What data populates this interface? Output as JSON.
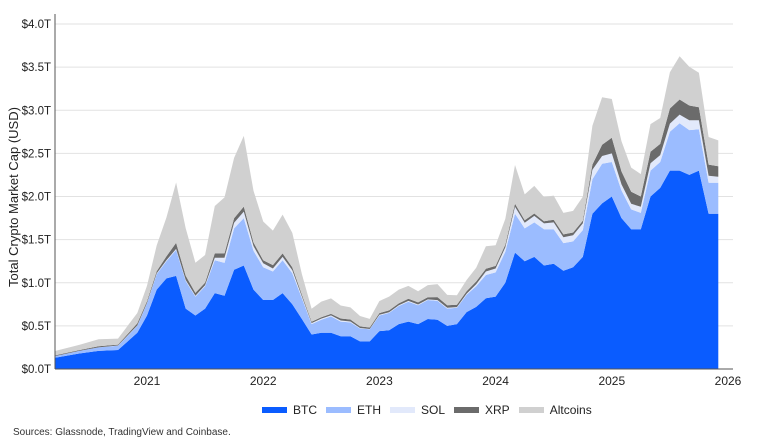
{
  "chart_data": {
    "type": "area",
    "stacked": true,
    "title": "",
    "xlabel": "",
    "ylabel": "Total Crypto Market Cap (USD)",
    "ylim": [
      0,
      4.0
    ],
    "yticks": [
      "$0.0T",
      "$0.5T",
      "$1.0T",
      "$1.5T",
      "$2.0T",
      "$2.5T",
      "$3.0T",
      "$3.5T",
      "$4.0T"
    ],
    "xticks": [
      "2021",
      "2022",
      "2023",
      "2024",
      "2025",
      "2026"
    ],
    "grid": "horizontal",
    "legend_position": "bottom",
    "x": [
      "2020-04",
      "2020-06",
      "2020-08",
      "2020-10",
      "2020-12",
      "2021-01",
      "2021-02",
      "2021-03",
      "2021-04",
      "2021-05",
      "2021-06",
      "2021-07",
      "2021-08",
      "2021-09",
      "2021-10",
      "2021-11",
      "2021-12",
      "2022-01",
      "2022-02",
      "2022-03",
      "2022-04",
      "2022-05",
      "2022-06",
      "2022-07",
      "2022-08",
      "2022-09",
      "2022-10",
      "2022-11",
      "2022-12",
      "2023-01",
      "2023-02",
      "2023-03",
      "2023-04",
      "2023-05",
      "2023-06",
      "2023-07",
      "2023-08",
      "2023-09",
      "2023-10",
      "2023-11",
      "2023-12",
      "2024-01",
      "2024-02",
      "2024-03",
      "2024-04",
      "2024-05",
      "2024-06",
      "2024-07",
      "2024-08",
      "2024-09",
      "2024-10",
      "2024-11",
      "2024-12",
      "2025-01",
      "2025-02",
      "2025-03",
      "2025-04",
      "2025-05",
      "2025-06",
      "2025-07",
      "2025-08",
      "2025-09",
      "2025-10",
      "2025-11",
      "2025-12"
    ],
    "series": [
      {
        "name": "BTC",
        "color": "#0a5cff",
        "values": [
          0.13,
          0.18,
          0.21,
          0.22,
          0.42,
          0.62,
          0.92,
          1.05,
          1.08,
          0.7,
          0.62,
          0.7,
          0.88,
          0.85,
          1.15,
          1.2,
          0.92,
          0.8,
          0.8,
          0.88,
          0.75,
          0.58,
          0.4,
          0.42,
          0.42,
          0.38,
          0.38,
          0.32,
          0.32,
          0.44,
          0.45,
          0.52,
          0.55,
          0.52,
          0.58,
          0.57,
          0.5,
          0.52,
          0.66,
          0.72,
          0.82,
          0.84,
          1.0,
          1.35,
          1.25,
          1.3,
          1.2,
          1.22,
          1.14,
          1.18,
          1.3,
          1.8,
          1.92,
          2.0,
          1.75,
          1.62,
          1.62,
          2.0,
          2.1,
          2.3,
          2.3,
          2.25,
          2.3,
          1.8,
          1.8
        ]
      },
      {
        "name": "ETH",
        "color": "#9bbcff",
        "values": [
          0.02,
          0.03,
          0.04,
          0.05,
          0.08,
          0.14,
          0.18,
          0.2,
          0.3,
          0.32,
          0.22,
          0.26,
          0.38,
          0.38,
          0.48,
          0.55,
          0.45,
          0.38,
          0.33,
          0.38,
          0.36,
          0.24,
          0.12,
          0.15,
          0.19,
          0.17,
          0.16,
          0.15,
          0.14,
          0.18,
          0.2,
          0.21,
          0.23,
          0.22,
          0.22,
          0.22,
          0.2,
          0.19,
          0.2,
          0.24,
          0.27,
          0.28,
          0.36,
          0.45,
          0.38,
          0.4,
          0.42,
          0.4,
          0.32,
          0.3,
          0.31,
          0.4,
          0.46,
          0.4,
          0.32,
          0.23,
          0.19,
          0.3,
          0.3,
          0.45,
          0.55,
          0.52,
          0.48,
          0.36,
          0.36
        ]
      },
      {
        "name": "SOL",
        "color": "#e2e9fb",
        "values": [
          0.0,
          0.0,
          0.001,
          0.002,
          0.004,
          0.005,
          0.008,
          0.01,
          0.012,
          0.012,
          0.01,
          0.012,
          0.03,
          0.06,
          0.065,
          0.075,
          0.055,
          0.045,
          0.035,
          0.04,
          0.035,
          0.02,
          0.012,
          0.014,
          0.012,
          0.012,
          0.011,
          0.005,
          0.004,
          0.008,
          0.009,
          0.008,
          0.009,
          0.008,
          0.007,
          0.009,
          0.009,
          0.008,
          0.012,
          0.022,
          0.04,
          0.045,
          0.05,
          0.08,
          0.065,
          0.075,
          0.068,
          0.08,
          0.068,
          0.07,
          0.078,
          0.11,
          0.09,
          0.1,
          0.07,
          0.065,
          0.07,
          0.085,
          0.08,
          0.095,
          0.1,
          0.115,
          0.105,
          0.08,
          0.07
        ]
      },
      {
        "name": "XRP",
        "color": "#6b6b6b",
        "values": [
          0.008,
          0.009,
          0.013,
          0.011,
          0.025,
          0.02,
          0.025,
          0.045,
          0.07,
          0.05,
          0.032,
          0.03,
          0.05,
          0.05,
          0.052,
          0.058,
          0.042,
          0.035,
          0.04,
          0.04,
          0.033,
          0.02,
          0.016,
          0.017,
          0.017,
          0.024,
          0.023,
          0.019,
          0.017,
          0.02,
          0.021,
          0.022,
          0.025,
          0.024,
          0.026,
          0.035,
          0.03,
          0.027,
          0.03,
          0.032,
          0.033,
          0.03,
          0.03,
          0.035,
          0.029,
          0.028,
          0.026,
          0.03,
          0.032,
          0.033,
          0.03,
          0.06,
          0.13,
          0.18,
          0.15,
          0.14,
          0.12,
          0.135,
          0.13,
          0.175,
          0.175,
          0.17,
          0.15,
          0.13,
          0.12
        ]
      },
      {
        "name": "Altcoins",
        "color": "#d0d0d0",
        "values": [
          0.05,
          0.06,
          0.08,
          0.07,
          0.12,
          0.18,
          0.3,
          0.45,
          0.7,
          0.55,
          0.35,
          0.32,
          0.55,
          0.65,
          0.7,
          0.82,
          0.6,
          0.45,
          0.4,
          0.45,
          0.4,
          0.24,
          0.15,
          0.18,
          0.18,
          0.15,
          0.14,
          0.12,
          0.1,
          0.14,
          0.16,
          0.16,
          0.15,
          0.13,
          0.14,
          0.15,
          0.12,
          0.11,
          0.13,
          0.16,
          0.26,
          0.24,
          0.3,
          0.45,
          0.3,
          0.32,
          0.28,
          0.28,
          0.25,
          0.25,
          0.28,
          0.45,
          0.55,
          0.45,
          0.35,
          0.28,
          0.26,
          0.32,
          0.3,
          0.42,
          0.5,
          0.45,
          0.4,
          0.32,
          0.3
        ]
      }
    ]
  },
  "legend": {
    "items": [
      {
        "label": "BTC",
        "color": "#0a5cff"
      },
      {
        "label": "ETH",
        "color": "#9bbcff"
      },
      {
        "label": "SOL",
        "color": "#e2e9fb"
      },
      {
        "label": "XRP",
        "color": "#6b6b6b"
      },
      {
        "label": "Altcoins",
        "color": "#d0d0d0"
      }
    ]
  },
  "footer": {
    "source": "Sources: Glassnode, TradingView and Coinbase."
  }
}
